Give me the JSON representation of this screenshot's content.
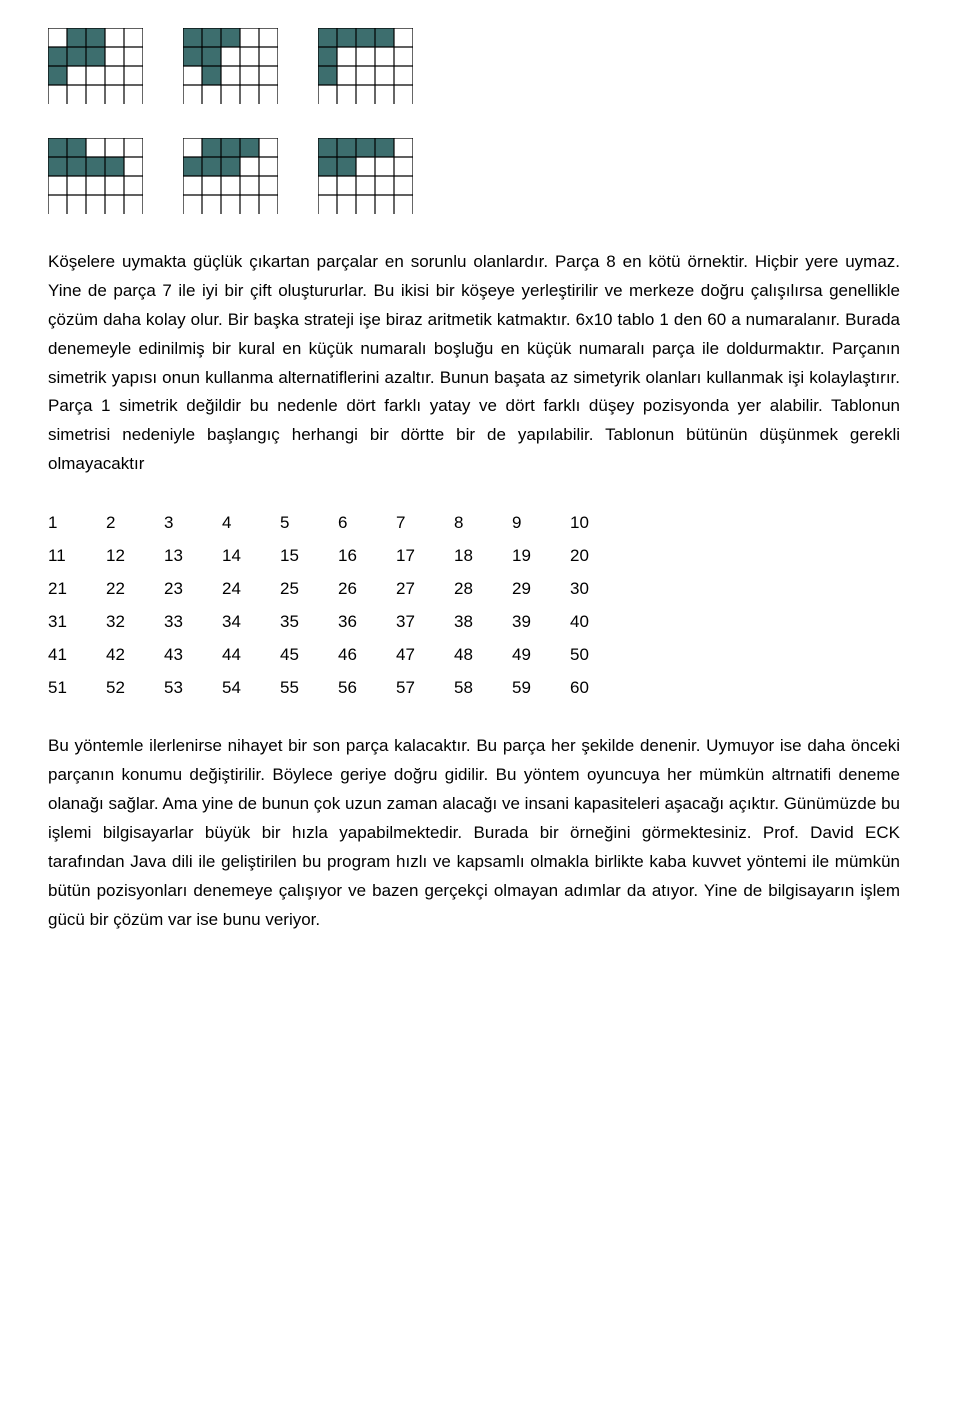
{
  "shapes": {
    "cell_size": 19,
    "cols": 5,
    "rows": 4,
    "fill_color": "#3d6e6e",
    "stroke_color": "#000000",
    "stroke_width": 1.2,
    "row1": [
      {
        "filled": [
          [
            1,
            0
          ],
          [
            2,
            0
          ],
          [
            0,
            1
          ],
          [
            1,
            1
          ],
          [
            2,
            1
          ],
          [
            0,
            2
          ]
        ]
      },
      {
        "filled": [
          [
            0,
            0
          ],
          [
            1,
            0
          ],
          [
            2,
            0
          ],
          [
            0,
            1
          ],
          [
            1,
            1
          ],
          [
            1,
            2
          ]
        ]
      },
      {
        "filled": [
          [
            0,
            0
          ],
          [
            1,
            0
          ],
          [
            2,
            0
          ],
          [
            3,
            0
          ],
          [
            0,
            1
          ],
          [
            0,
            2
          ]
        ]
      }
    ],
    "row2": [
      {
        "filled": [
          [
            0,
            0
          ],
          [
            1,
            0
          ],
          [
            0,
            1
          ],
          [
            1,
            1
          ],
          [
            2,
            1
          ],
          [
            3,
            1
          ]
        ]
      },
      {
        "filled": [
          [
            1,
            0
          ],
          [
            2,
            0
          ],
          [
            3,
            0
          ],
          [
            0,
            1
          ],
          [
            1,
            1
          ],
          [
            2,
            1
          ]
        ]
      },
      {
        "filled": [
          [
            0,
            0
          ],
          [
            1,
            0
          ],
          [
            2,
            0
          ],
          [
            3,
            0
          ],
          [
            0,
            1
          ],
          [
            1,
            1
          ]
        ]
      }
    ]
  },
  "paragraphs": {
    "p1": "Köşelere uymakta güçlük çıkartan parçalar en sorunlu olanlardır. Parça 8 en kötü örnektir. Hiçbir yere uymaz. Yine de parça 7 ile iyi bir çift oluştururlar. Bu ikisi bir köşeye yerleştirilir ve merkeze doğru çalışılırsa genellikle çözüm daha kolay olur. Bir başka strateji işe biraz aritmetik katmaktır. 6x10 tablo 1 den 60 a numaralanır. Burada denemeyle edinilmiş bir kural en küçük numaralı boşluğu en küçük numaralı parça ile doldurmaktır. Parçanın simetrik yapısı onun kullanma alternatiflerini azaltır. Bunun başata az simetyrik olanları kullanmak işi kolaylaştırır. Parça 1 simetrik değildir bu nedenle dört farklı yatay ve dört farklı düşey pozisyonda yer alabilir. Tablonun simetrisi nedeniyle başlangıç herhangi bir dörtte bir de yapılabilir. Tablonun bütünün düşünmek gerekli olmayacaktır",
    "p2": "Bu yöntemle ilerlenirse nihayet bir son parça kalacaktır. Bu parça her şekilde denenir. Uymuyor ise daha önceki parçanın konumu değiştirilir. Böylece geriye doğru gidilir. Bu yöntem  oyuncuya her mümkün altrnatifi deneme olanağı sağlar. Ama yine de bunun çok uzun zaman alacağı ve insani kapasiteleri aşacağı  açıktır. Günümüzde bu işlemi bilgisayarlar büyük bir hızla yapabilmektedir. Burada bir örneğini görmektesiniz. Prof. David ECK tarafından Java dili ile geliştirilen bu program hızlı ve kapsamlı olmakla birlikte kaba kuvvet yöntemi ile mümkün bütün pozisyonları denemeye çalışıyor ve bazen gerçekçi olmayan adımlar da atıyor. Yine de bilgisayarın işlem gücü bir çözüm var ise bunu veriyor."
  },
  "number_table": {
    "rows": [
      [
        "1",
        "2",
        "3",
        "4",
        "5",
        "6",
        "7",
        "8",
        "9",
        "10"
      ],
      [
        "11",
        "12",
        "13",
        "14",
        "15",
        "16",
        "17",
        "18",
        "19",
        "20"
      ],
      [
        "21",
        "22",
        "23",
        "24",
        "25",
        "26",
        "27",
        "28",
        "29",
        "30"
      ],
      [
        "31",
        "32",
        "33",
        "34",
        "35",
        "36",
        "37",
        "38",
        "39",
        "40"
      ],
      [
        "41",
        "42",
        "43",
        "44",
        "45",
        "46",
        "47",
        "48",
        "49",
        "50"
      ],
      [
        "51",
        "52",
        "53",
        "54",
        "55",
        "56",
        "57",
        "58",
        "59",
        "60"
      ]
    ]
  }
}
